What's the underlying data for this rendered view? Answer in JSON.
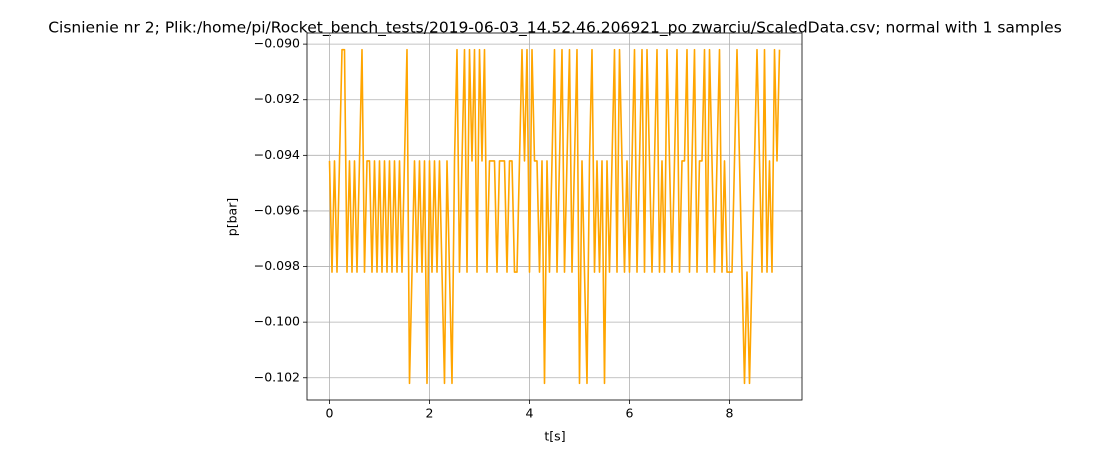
{
  "chart_data": {
    "type": "line",
    "title": "Cisnienie nr 2; Plik:/home/pi/Rocket_bench_tests/2019-06-03_14.52.46.206921_po zwarciu/ScaledData.csv; normal with 1 samples",
    "x_label": "t[s]",
    "y_label": "p[bar]",
    "color": "#ffa500",
    "grid": true,
    "xlim": [
      -0.45,
      9.45
    ],
    "ylim": [
      -0.1028,
      -0.0896
    ],
    "xticks": [
      0,
      2,
      4,
      6,
      8
    ],
    "yticks": [
      {
        "value": -0.102,
        "label": "−0.102"
      },
      {
        "value": -0.1,
        "label": "−0.100"
      },
      {
        "value": -0.098,
        "label": "−0.098"
      },
      {
        "value": -0.096,
        "label": "−0.096"
      },
      {
        "value": -0.094,
        "label": "−0.094"
      },
      {
        "value": -0.092,
        "label": "−0.092"
      },
      {
        "value": -0.09,
        "label": "−0.090"
      }
    ],
    "x": [
      0,
      0.05,
      0.1,
      0.15,
      0.2,
      0.25,
      0.3,
      0.35,
      0.4,
      0.45,
      0.5,
      0.55,
      0.6,
      0.65,
      0.7,
      0.75,
      0.8,
      0.85,
      0.9,
      0.95,
      1,
      1.05,
      1.1,
      1.15,
      1.2,
      1.25,
      1.3,
      1.35,
      1.4,
      1.45,
      1.5,
      1.55,
      1.6,
      1.65,
      1.7,
      1.75,
      1.8,
      1.85,
      1.9,
      1.95,
      2,
      2.05,
      2.1,
      2.15,
      2.2,
      2.25,
      2.3,
      2.35,
      2.4,
      2.45,
      2.5,
      2.55,
      2.6,
      2.65,
      2.7,
      2.75,
      2.8,
      2.85,
      2.9,
      2.95,
      3,
      3.05,
      3.1,
      3.15,
      3.2,
      3.25,
      3.3,
      3.35,
      3.4,
      3.45,
      3.5,
      3.55,
      3.6,
      3.65,
      3.7,
      3.75,
      3.8,
      3.85,
      3.9,
      3.95,
      4,
      4.05,
      4.1,
      4.15,
      4.2,
      4.25,
      4.3,
      4.35,
      4.4,
      4.45,
      4.5,
      4.55,
      4.6,
      4.65,
      4.7,
      4.75,
      4.8,
      4.85,
      4.9,
      4.95,
      5,
      5.05,
      5.1,
      5.15,
      5.2,
      5.25,
      5.3,
      5.35,
      5.4,
      5.45,
      5.5,
      5.55,
      5.6,
      5.65,
      5.7,
      5.75,
      5.8,
      5.85,
      5.9,
      5.95,
      6,
      6.05,
      6.1,
      6.15,
      6.2,
      6.25,
      6.3,
      6.35,
      6.4,
      6.45,
      6.5,
      6.55,
      6.6,
      6.65,
      6.7,
      6.75,
      6.8,
      6.85,
      6.9,
      6.95,
      7,
      7.05,
      7.1,
      7.15,
      7.2,
      7.25,
      7.3,
      7.35,
      7.4,
      7.45,
      7.5,
      7.55,
      7.6,
      7.65,
      7.7,
      7.75,
      7.8,
      7.85,
      7.9,
      7.95,
      8,
      8.05,
      8.1,
      8.15,
      8.2,
      8.25,
      8.3,
      8.35,
      8.4,
      8.45,
      8.5,
      8.55,
      8.6,
      8.65,
      8.7,
      8.75,
      8.8,
      8.85,
      8.9,
      8.95,
      9
    ],
    "values": [
      -0.0942,
      -0.0982,
      -0.0942,
      -0.0982,
      -0.0942,
      -0.0902,
      -0.0902,
      -0.0982,
      -0.0942,
      -0.0982,
      -0.0942,
      -0.0982,
      -0.0942,
      -0.0902,
      -0.0982,
      -0.0942,
      -0.0942,
      -0.0982,
      -0.0942,
      -0.0982,
      -0.0942,
      -0.0982,
      -0.0942,
      -0.0982,
      -0.0942,
      -0.0982,
      -0.0942,
      -0.0982,
      -0.0942,
      -0.0982,
      -0.0942,
      -0.0902,
      -0.1022,
      -0.0982,
      -0.0942,
      -0.0982,
      -0.0942,
      -0.0982,
      -0.0942,
      -0.1022,
      -0.0942,
      -0.0982,
      -0.0942,
      -0.0982,
      -0.0942,
      -0.0982,
      -0.1022,
      -0.0942,
      -0.0982,
      -0.1022,
      -0.0942,
      -0.0902,
      -0.0982,
      -0.0942,
      -0.0902,
      -0.0982,
      -0.0902,
      -0.0942,
      -0.0902,
      -0.0982,
      -0.0902,
      -0.0942,
      -0.0902,
      -0.0982,
      -0.0942,
      -0.0942,
      -0.0942,
      -0.0982,
      -0.0942,
      -0.0942,
      -0.0942,
      -0.0982,
      -0.0942,
      -0.0942,
      -0.0982,
      -0.0982,
      -0.0942,
      -0.0902,
      -0.0942,
      -0.0902,
      -0.0982,
      -0.0902,
      -0.0942,
      -0.0942,
      -0.0982,
      -0.0942,
      -0.1022,
      -0.0942,
      -0.0982,
      -0.0942,
      -0.0902,
      -0.0982,
      -0.0942,
      -0.0902,
      -0.0982,
      -0.0942,
      -0.0902,
      -0.0982,
      -0.0942,
      -0.0902,
      -0.1022,
      -0.0942,
      -0.0982,
      -0.1022,
      -0.0942,
      -0.0902,
      -0.0982,
      -0.0942,
      -0.0982,
      -0.0942,
      -0.1022,
      -0.0942,
      -0.0982,
      -0.0942,
      -0.0902,
      -0.0982,
      -0.0902,
      -0.0942,
      -0.0982,
      -0.0942,
      -0.0982,
      -0.0942,
      -0.0902,
      -0.0982,
      -0.0942,
      -0.0902,
      -0.0982,
      -0.0902,
      -0.0942,
      -0.0982,
      -0.0942,
      -0.0902,
      -0.0982,
      -0.0942,
      -0.0982,
      -0.0902,
      -0.0942,
      -0.0982,
      -0.0942,
      -0.0902,
      -0.0982,
      -0.0942,
      -0.0942,
      -0.0902,
      -0.0982,
      -0.0942,
      -0.0902,
      -0.0982,
      -0.0942,
      -0.0942,
      -0.0902,
      -0.0982,
      -0.0902,
      -0.0942,
      -0.0982,
      -0.0942,
      -0.0902,
      -0.0982,
      -0.0942,
      -0.0982,
      -0.0982,
      -0.0982,
      -0.0942,
      -0.0902,
      -0.0942,
      -0.0982,
      -0.1022,
      -0.0982,
      -0.1022,
      -0.0982,
      -0.0942,
      -0.0902,
      -0.0942,
      -0.0982,
      -0.0902,
      -0.0982,
      -0.0942,
      -0.0982,
      -0.0902,
      -0.0942,
      -0.0902
    ]
  }
}
